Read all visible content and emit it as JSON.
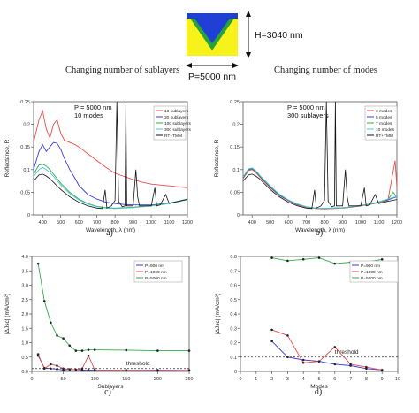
{
  "header": {
    "left_caption": "Changing number of sublayers",
    "right_caption": "Changing number of modes",
    "h_label": "H=3040 nm",
    "p_label": "P=5000 nm"
  },
  "colors": {
    "structure_blue": "#1f3fd6",
    "structure_green": "#2aa13a",
    "structure_yellow": "#f7f31a"
  },
  "chart_data": [
    {
      "id": "a",
      "type": "line",
      "panel_label": "a)",
      "xlabel": "Wavelength, λ (nm)",
      "ylabel": "Reflectance, R",
      "xlim": [
        350,
        1200
      ],
      "ylim": [
        0,
        0.25
      ],
      "xticks": [
        400,
        500,
        600,
        700,
        800,
        900,
        1000,
        1100,
        1200
      ],
      "yticks": [
        0,
        0.05,
        0.1,
        0.15,
        0.2,
        0.25
      ],
      "ytick_labels": [
        "0",
        "0.05",
        "0.1",
        "0.15",
        "0.2",
        "0.25"
      ],
      "annotation": [
        "P = 5000 nm",
        "10 modes"
      ],
      "legend_position": "top-right",
      "series": [
        {
          "name": "10 sublayers",
          "color": "#e84c4c",
          "x": [
            350,
            380,
            400,
            420,
            440,
            460,
            480,
            500,
            520,
            550,
            580,
            600,
            650,
            700,
            750,
            800,
            850,
            900,
            950,
            1000,
            1050,
            1100,
            1150,
            1200
          ],
          "y": [
            0.16,
            0.21,
            0.23,
            0.19,
            0.17,
            0.2,
            0.21,
            0.18,
            0.165,
            0.16,
            0.155,
            0.15,
            0.135,
            0.12,
            0.105,
            0.092,
            0.085,
            0.078,
            0.072,
            0.068,
            0.066,
            0.064,
            0.062,
            0.06
          ]
        },
        {
          "name": "30 sublayers",
          "color": "#3a3ad8",
          "x": [
            350,
            380,
            400,
            420,
            440,
            460,
            480,
            500,
            520,
            550,
            580,
            600,
            650,
            700,
            750,
            800,
            850,
            900,
            950,
            1000,
            1050,
            1100,
            1150,
            1200
          ],
          "y": [
            0.1,
            0.14,
            0.155,
            0.14,
            0.15,
            0.16,
            0.158,
            0.145,
            0.125,
            0.1,
            0.08,
            0.065,
            0.045,
            0.035,
            0.028,
            0.025,
            0.023,
            0.022,
            0.022,
            0.022,
            0.024,
            0.026,
            0.03,
            0.035
          ]
        },
        {
          "name": "100 sublayers",
          "color": "#2fae4a",
          "x": [
            350,
            380,
            400,
            420,
            440,
            460,
            500,
            550,
            600,
            650,
            700,
            750,
            800,
            850,
            900,
            950,
            1000,
            1050,
            1100,
            1150,
            1200
          ],
          "y": [
            0.09,
            0.11,
            0.112,
            0.108,
            0.1,
            0.09,
            0.07,
            0.05,
            0.035,
            0.025,
            0.019,
            0.016,
            0.015,
            0.016,
            0.017,
            0.019,
            0.021,
            0.023,
            0.026,
            0.03,
            0.035
          ]
        },
        {
          "name": "300 sublayers",
          "color": "#4fc7d4",
          "x": [
            350,
            380,
            400,
            420,
            440,
            460,
            500,
            550,
            600,
            650,
            700,
            750,
            800,
            850,
            900,
            950,
            1000,
            1050,
            1100,
            1150,
            1200
          ],
          "y": [
            0.085,
            0.1,
            0.105,
            0.1,
            0.094,
            0.085,
            0.066,
            0.047,
            0.033,
            0.024,
            0.018,
            0.015,
            0.014,
            0.015,
            0.016,
            0.018,
            0.02,
            0.022,
            0.025,
            0.029,
            0.034
          ]
        },
        {
          "name": "RT+TMM",
          "color": "#111111",
          "x": [
            350,
            380,
            400,
            420,
            440,
            460,
            500,
            550,
            600,
            650,
            700,
            730,
            745,
            755,
            780,
            800,
            810,
            820,
            840,
            855,
            860,
            865,
            880,
            900,
            915,
            925,
            935,
            960,
            1000,
            1020,
            1030,
            1050,
            1080,
            1100,
            1150,
            1200
          ],
          "y": [
            0.075,
            0.088,
            0.09,
            0.086,
            0.08,
            0.072,
            0.056,
            0.04,
            0.028,
            0.02,
            0.015,
            0.014,
            0.055,
            0.015,
            0.02,
            0.032,
            0.25,
            0.03,
            0.018,
            0.02,
            0.25,
            0.02,
            0.02,
            0.02,
            0.1,
            0.04,
            0.02,
            0.02,
            0.02,
            0.06,
            0.02,
            0.022,
            0.045,
            0.025,
            0.03,
            0.034
          ]
        }
      ]
    },
    {
      "id": "b",
      "type": "line",
      "panel_label": "b)",
      "xlabel": "Wavelength, λ (nm)",
      "ylabel": "Reflectance, R",
      "xlim": [
        350,
        1200
      ],
      "ylim": [
        0,
        0.25
      ],
      "xticks": [
        400,
        500,
        600,
        700,
        800,
        900,
        1000,
        1100,
        1200
      ],
      "yticks": [
        0,
        0.05,
        0.1,
        0.15,
        0.2,
        0.25
      ],
      "ytick_labels": [
        "0",
        "0.05",
        "0.1",
        "0.15",
        "0.2",
        "0.25"
      ],
      "annotation": [
        "P = 5000 nm",
        "300 sublayers"
      ],
      "legend_position": "top-right",
      "series": [
        {
          "name": "3 modes",
          "color": "#e84c4c",
          "x": [
            350,
            380,
            400,
            420,
            450,
            500,
            550,
            600,
            650,
            700,
            750,
            800,
            850,
            900,
            950,
            1000,
            1050,
            1100,
            1150,
            1190,
            1200
          ],
          "y": [
            0.08,
            0.098,
            0.1,
            0.094,
            0.08,
            0.06,
            0.043,
            0.031,
            0.022,
            0.017,
            0.014,
            0.013,
            0.014,
            0.015,
            0.017,
            0.02,
            0.023,
            0.027,
            0.032,
            0.12,
            0.06
          ]
        },
        {
          "name": "5 modes",
          "color": "#3a3ad8",
          "x": [
            350,
            380,
            400,
            420,
            450,
            500,
            550,
            600,
            650,
            700,
            750,
            800,
            850,
            900,
            950,
            1000,
            1050,
            1100,
            1150,
            1200
          ],
          "y": [
            0.082,
            0.1,
            0.102,
            0.096,
            0.082,
            0.062,
            0.044,
            0.032,
            0.023,
            0.018,
            0.015,
            0.014,
            0.015,
            0.016,
            0.018,
            0.021,
            0.024,
            0.028,
            0.033,
            0.04
          ]
        },
        {
          "name": "7 modes",
          "color": "#2fae4a",
          "x": [
            350,
            380,
            400,
            420,
            450,
            500,
            550,
            600,
            650,
            700,
            750,
            800,
            850,
            900,
            950,
            1000,
            1050,
            1100,
            1150,
            1180,
            1200
          ],
          "y": [
            0.083,
            0.101,
            0.103,
            0.097,
            0.083,
            0.063,
            0.045,
            0.033,
            0.024,
            0.018,
            0.015,
            0.014,
            0.015,
            0.016,
            0.018,
            0.021,
            0.024,
            0.028,
            0.034,
            0.05,
            0.038
          ]
        },
        {
          "name": "10 modes",
          "color": "#4fc7d4",
          "x": [
            350,
            380,
            400,
            420,
            450,
            500,
            550,
            600,
            650,
            700,
            750,
            800,
            850,
            900,
            950,
            1000,
            1050,
            1100,
            1150,
            1200
          ],
          "y": [
            0.084,
            0.102,
            0.104,
            0.098,
            0.084,
            0.064,
            0.046,
            0.033,
            0.024,
            0.018,
            0.015,
            0.014,
            0.015,
            0.016,
            0.018,
            0.021,
            0.024,
            0.029,
            0.035,
            0.041
          ]
        },
        {
          "name": "RT+TMM",
          "color": "#111111",
          "x": [
            350,
            380,
            400,
            420,
            440,
            460,
            500,
            550,
            600,
            650,
            700,
            730,
            745,
            755,
            780,
            800,
            810,
            820,
            840,
            855,
            860,
            865,
            880,
            900,
            915,
            925,
            935,
            960,
            1000,
            1020,
            1030,
            1050,
            1080,
            1100,
            1150,
            1200
          ],
          "y": [
            0.075,
            0.088,
            0.09,
            0.086,
            0.08,
            0.072,
            0.056,
            0.04,
            0.028,
            0.02,
            0.015,
            0.014,
            0.055,
            0.015,
            0.02,
            0.032,
            0.25,
            0.03,
            0.018,
            0.02,
            0.25,
            0.02,
            0.02,
            0.02,
            0.1,
            0.04,
            0.02,
            0.02,
            0.02,
            0.06,
            0.02,
            0.022,
            0.045,
            0.025,
            0.03,
            0.034
          ]
        }
      ]
    },
    {
      "id": "c",
      "type": "line",
      "panel_label": "c)",
      "xlabel": "Sublayers",
      "ylabel": "|ΔJsc| (mA/cm²)",
      "xlim": [
        0,
        250
      ],
      "ylim": [
        0,
        4.0
      ],
      "xticks": [
        0,
        50,
        100,
        150,
        200,
        250
      ],
      "yticks": [
        0,
        0.5,
        1.0,
        1.5,
        2.0,
        2.5,
        3.0,
        3.5,
        4.0
      ],
      "ytick_labels": [
        "0.0",
        "0.5",
        "1.0",
        "1.5",
        "2.0",
        "2.5",
        "3.0",
        "3.5",
        "4.0"
      ],
      "threshold": {
        "value": 0.1,
        "label": "threshold"
      },
      "legend_position": "top-right",
      "series": [
        {
          "name": "P=900 nm",
          "color": "#3a3ad8",
          "x": [
            10,
            20,
            30,
            40,
            50,
            60,
            70,
            80,
            90,
            100,
            150,
            200,
            250
          ],
          "y": [
            0.55,
            0.12,
            0.1,
            0.08,
            0.05,
            0.07,
            0.06,
            0.05,
            0.05,
            0.04,
            0.04,
            0.03,
            0.03
          ]
        },
        {
          "name": "P=1800 nm",
          "color": "#e84c4c",
          "x": [
            10,
            20,
            30,
            40,
            50,
            60,
            70,
            80,
            90,
            100,
            150,
            200,
            250
          ],
          "y": [
            0.6,
            0.1,
            0.25,
            0.2,
            0.1,
            0.07,
            0.06,
            0.1,
            0.55,
            0.05,
            0.04,
            0.05,
            0.04
          ]
        },
        {
          "name": "P=5000 nm",
          "color": "#2fae4a",
          "x": [
            10,
            20,
            30,
            40,
            50,
            60,
            70,
            80,
            90,
            100,
            150,
            200,
            250
          ],
          "y": [
            3.75,
            2.45,
            1.7,
            1.25,
            1.15,
            0.9,
            0.72,
            0.72,
            0.75,
            0.75,
            0.74,
            0.72,
            0.72
          ]
        }
      ]
    },
    {
      "id": "d",
      "type": "line",
      "panel_label": "d)",
      "xlabel": "Modes",
      "ylabel": "|ΔJsc| (mA/cm²)",
      "xlim": [
        0,
        10
      ],
      "ylim": [
        0,
        0.8
      ],
      "xticks": [
        0,
        1,
        2,
        3,
        4,
        5,
        6,
        7,
        8,
        9,
        10
      ],
      "yticks": [
        0,
        0.1,
        0.2,
        0.3,
        0.4,
        0.5,
        0.6,
        0.7,
        0.8
      ],
      "ytick_labels": [
        "0",
        "0.1",
        "0.2",
        "0.3",
        "0.4",
        "0.5",
        "0.6",
        "0.7",
        "0.8"
      ],
      "threshold": {
        "value": 0.1,
        "label": "threshold"
      },
      "legend_position": "top-right",
      "series": [
        {
          "name": "P=900 nm",
          "color": "#3a3ad8",
          "x": [
            2,
            3,
            4,
            5,
            6,
            7,
            8,
            9
          ],
          "y": [
            0.21,
            0.1,
            0.08,
            0.07,
            0.05,
            0.04,
            0.02,
            0.01
          ]
        },
        {
          "name": "P=1800 nm",
          "color": "#e84c4c",
          "x": [
            2,
            3,
            4,
            5,
            6,
            7,
            8,
            9
          ],
          "y": [
            0.29,
            0.25,
            0.06,
            0.07,
            0.17,
            0.05,
            0.03,
            0.01
          ]
        },
        {
          "name": "P=5000 nm",
          "color": "#2fae4a",
          "x": [
            2,
            3,
            4,
            5,
            6,
            7,
            8,
            9
          ],
          "y": [
            0.79,
            0.77,
            0.78,
            0.79,
            0.75,
            0.76,
            0.76,
            0.78
          ]
        }
      ]
    }
  ]
}
